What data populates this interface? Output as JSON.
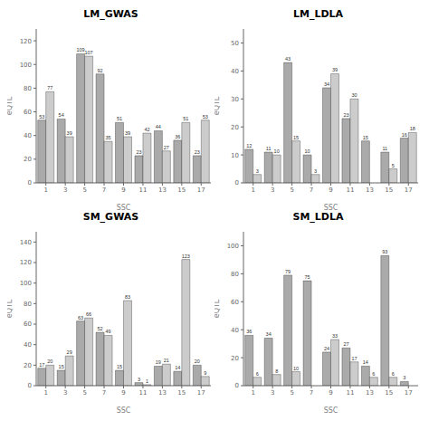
{
  "chart_data": [
    {
      "type": "bar",
      "title": "LM_GWAS",
      "xlabel": "SSC",
      "ylabel": "eQTL",
      "categories": [
        "1",
        "3",
        "5",
        "7",
        "9",
        "11",
        "13",
        "15",
        "17"
      ],
      "series": [
        {
          "color": "#aaaaaa",
          "values": [
            53,
            54,
            109,
            92,
            51,
            23,
            44,
            36,
            23
          ]
        },
        {
          "color": "#cccccc",
          "values": [
            77,
            39,
            107,
            35,
            39,
            42,
            27,
            51,
            53
          ]
        }
      ],
      "ylim": [
        0,
        130
      ],
      "yticks": [
        0,
        20,
        40,
        60,
        80,
        100,
        120
      ],
      "data_labels": true,
      "grid": false
    },
    {
      "type": "bar",
      "title": "LM_LDLA",
      "xlabel": "SSC",
      "ylabel": "eQTL",
      "categories": [
        "1",
        "3",
        "5",
        "7",
        "9",
        "11",
        "13",
        "15",
        "17"
      ],
      "series": [
        {
          "color": "#aaaaaa",
          "values": [
            12,
            11,
            43,
            10,
            34,
            23,
            15,
            11,
            16
          ]
        },
        {
          "color": "#cccccc",
          "values": [
            3,
            10,
            15,
            3,
            39,
            30,
            0,
            5,
            18
          ]
        }
      ],
      "ylim": [
        0,
        55
      ],
      "yticks": [
        0,
        10,
        20,
        30,
        40,
        50
      ],
      "data_labels": true,
      "grid": false
    },
    {
      "type": "bar",
      "title": "SM_GWAS",
      "xlabel": "SSC",
      "ylabel": "eQTL",
      "categories": [
        "1",
        "3",
        "5",
        "7",
        "9",
        "11",
        "13",
        "15",
        "17"
      ],
      "series": [
        {
          "color": "#aaaaaa",
          "values": [
            17,
            15,
            63,
            52,
            15,
            3,
            19,
            14,
            20
          ]
        },
        {
          "color": "#cccccc",
          "values": [
            20,
            29,
            66,
            49,
            83,
            1,
            21,
            123,
            9
          ]
        }
      ],
      "ylim": [
        0,
        150
      ],
      "yticks": [
        0,
        20,
        40,
        60,
        80,
        100,
        120,
        140
      ],
      "data_labels": true,
      "grid": false
    },
    {
      "type": "bar",
      "title": "SM_LDLA",
      "xlabel": "SSC",
      "ylabel": "eQTL",
      "categories": [
        "1",
        "3",
        "5",
        "7",
        "9",
        "11",
        "13",
        "15",
        "17"
      ],
      "series": [
        {
          "color": "#aaaaaa",
          "values": [
            36,
            34,
            79,
            75,
            24,
            27,
            14,
            93,
            3
          ]
        },
        {
          "color": "#cccccc",
          "values": [
            6,
            8,
            10,
            0,
            33,
            17,
            6,
            6,
            0
          ]
        }
      ],
      "ylim": [
        0,
        110
      ],
      "yticks": [
        0,
        20,
        40,
        60,
        80,
        100
      ],
      "data_labels": true,
      "grid": false
    }
  ]
}
